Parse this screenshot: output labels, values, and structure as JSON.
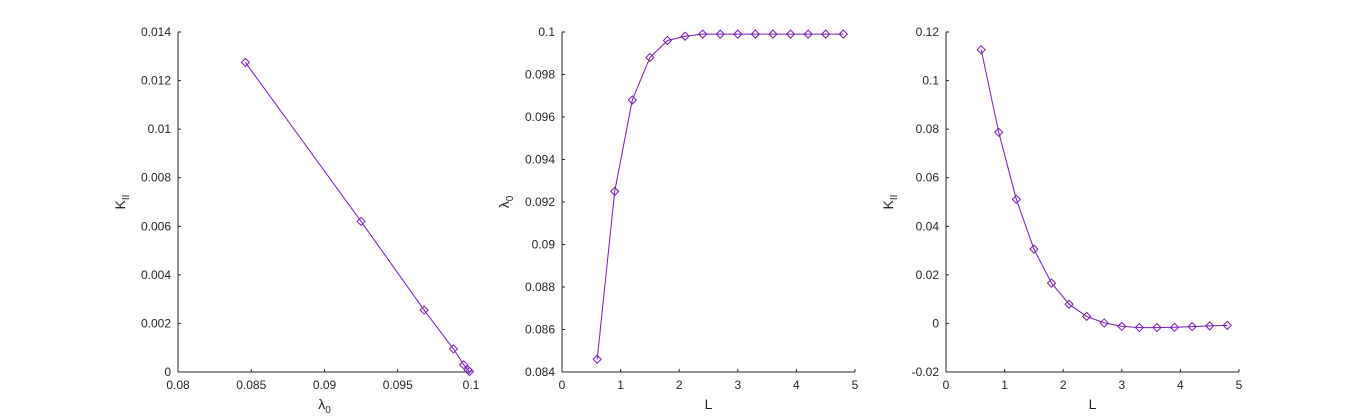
{
  "figure": {
    "background": "#ffffff",
    "line_color": "#7a1ab8",
    "axis_color": "#262626"
  },
  "chart_data": [
    {
      "type": "line",
      "marker": "diamond",
      "title": "",
      "xlabel": {
        "main": "λ",
        "sub": "0"
      },
      "ylabel": {
        "main": "K",
        "sub": "II"
      },
      "xlim": [
        0.08,
        0.1
      ],
      "ylim": [
        0,
        0.014
      ],
      "xticks": [
        0.08,
        0.085,
        0.09,
        0.095,
        0.1
      ],
      "xtick_labels": [
        "0.08",
        "0.085",
        "0.09",
        "0.095",
        "0.1"
      ],
      "yticks": [
        0,
        0.002,
        0.004,
        0.006,
        0.008,
        0.01,
        0.012,
        0.014
      ],
      "ytick_labels": [
        "0",
        "0.002",
        "0.004",
        "0.006",
        "0.008",
        "0.01",
        "0.012",
        "0.014"
      ],
      "x": [
        0.0846,
        0.0925,
        0.0968,
        0.0988,
        0.0995,
        0.0998,
        0.0999
      ],
      "y": [
        0.01275,
        0.0062,
        0.00255,
        0.00095,
        0.0003,
        8e-05,
        2e-05
      ]
    },
    {
      "type": "line",
      "marker": "diamond",
      "title": "",
      "xlabel": {
        "main": "L",
        "sub": ""
      },
      "ylabel": {
        "main": "λ",
        "sub": "0"
      },
      "xlim": [
        0,
        5
      ],
      "ylim": [
        0.084,
        0.1
      ],
      "xticks": [
        0,
        1,
        2,
        3,
        4,
        5
      ],
      "xtick_labels": [
        "0",
        "1",
        "2",
        "3",
        "4",
        "5"
      ],
      "yticks": [
        0.084,
        0.086,
        0.088,
        0.09,
        0.092,
        0.094,
        0.096,
        0.098,
        0.1
      ],
      "ytick_labels": [
        "0.084",
        "0.086",
        "0.088",
        "0.09",
        "0.092",
        "0.094",
        "0.096",
        "0.098",
        "0.1"
      ],
      "x": [
        0.6,
        0.9,
        1.2,
        1.5,
        1.8,
        2.1,
        2.4,
        2.7,
        3.0,
        3.3,
        3.6,
        3.9,
        4.2,
        4.5,
        4.8
      ],
      "y": [
        0.0846,
        0.0925,
        0.0968,
        0.0988,
        0.0996,
        0.0998,
        0.0999,
        0.0999,
        0.0999,
        0.0999,
        0.0999,
        0.0999,
        0.0999,
        0.0999,
        0.0999
      ]
    },
    {
      "type": "line",
      "marker": "diamond",
      "title": "",
      "xlabel": {
        "main": "L",
        "sub": ""
      },
      "ylabel": {
        "main": "K",
        "sub": "II"
      },
      "xlim": [
        0,
        5
      ],
      "ylim": [
        -0.02,
        0.12
      ],
      "xticks": [
        0,
        1,
        2,
        3,
        4,
        5
      ],
      "xtick_labels": [
        "0",
        "1",
        "2",
        "3",
        "4",
        "5"
      ],
      "yticks": [
        -0.02,
        0,
        0.02,
        0.04,
        0.06,
        0.08,
        0.1,
        0.12
      ],
      "ytick_labels": [
        "-0.02",
        "0",
        "0.02",
        "0.04",
        "0.06",
        "0.08",
        "0.1",
        "0.12"
      ],
      "x": [
        0.6,
        0.9,
        1.2,
        1.5,
        1.8,
        2.1,
        2.4,
        2.7,
        3.0,
        3.3,
        3.6,
        3.9,
        4.2,
        4.5,
        4.8
      ],
      "y": [
        0.1127,
        0.0787,
        0.0511,
        0.0306,
        0.0166,
        0.0079,
        0.0029,
        0.0002,
        -0.0012,
        -0.0017,
        -0.0017,
        -0.0016,
        -0.0013,
        -0.001,
        -0.0008
      ]
    }
  ]
}
